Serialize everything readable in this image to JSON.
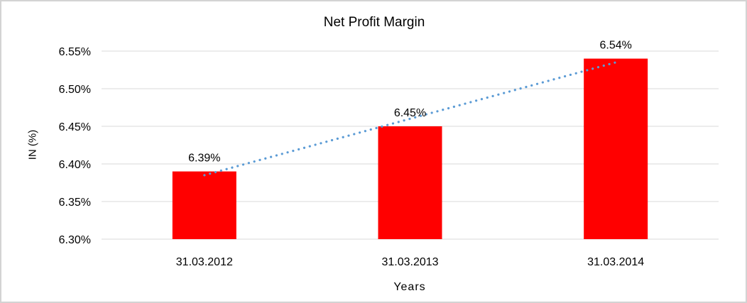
{
  "chart_data": {
    "type": "bar",
    "title": "Net Profit Margin",
    "xlabel": "Years",
    "ylabel": "IN (%)",
    "categories": [
      "31.03.2012",
      "31.03.2013",
      "31.03.2014"
    ],
    "series": [
      {
        "name": "Net Profit Margin",
        "values": [
          6.39,
          6.45,
          6.54
        ]
      }
    ],
    "data_labels": [
      "6.39%",
      "6.45%",
      "6.54%"
    ],
    "yticks": [
      6.3,
      6.35,
      6.4,
      6.45,
      6.5,
      6.55
    ],
    "ytick_labels": [
      "6.30%",
      "6.35%",
      "6.40%",
      "6.45%",
      "6.50%",
      "6.55%"
    ],
    "ylim": [
      6.3,
      6.55
    ],
    "grid": true,
    "legend": "none",
    "trendline": {
      "type": "linear",
      "style": "dotted"
    },
    "colors": {
      "bar": "#FF0000",
      "trendline": "#5B9BD5",
      "gridline": "#D9D9D9",
      "text": "#000000",
      "border": "#D3D3D3"
    }
  }
}
